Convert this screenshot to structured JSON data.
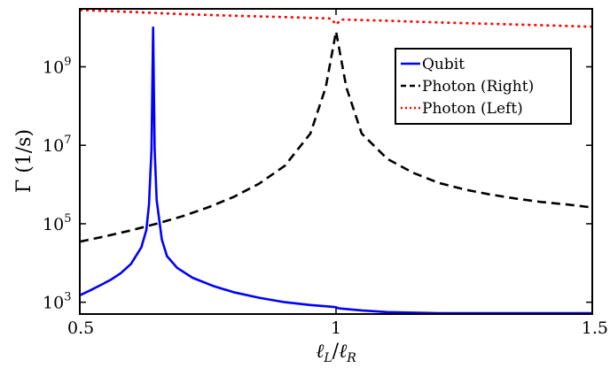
{
  "chart_data": {
    "type": "line",
    "xlabel": "ℓL/ℓR",
    "ylabel": "Γ (1/s)",
    "xlim": [
      0.5,
      1.5
    ],
    "ylim": [
      500,
      30000000000
    ],
    "y_scale": "log",
    "x_ticks": [
      {
        "value": 0.5,
        "label": "0.5"
      },
      {
        "value": 1,
        "label": "1"
      },
      {
        "value": 1.5,
        "label": "1.5"
      }
    ],
    "y_ticks": [
      {
        "value": 1000,
        "base": "10",
        "exp": "3"
      },
      {
        "value": 100000,
        "base": "10",
        "exp": "5"
      },
      {
        "value": 10000000,
        "base": "10",
        "exp": "7"
      },
      {
        "value": 1000000000,
        "base": "10",
        "exp": "9"
      }
    ],
    "grid": false,
    "legend_position": "top-right",
    "series": [
      {
        "name": "Qubit",
        "color": "#0000ff",
        "style": "solid",
        "points": [
          [
            0.5,
            1500
          ],
          [
            0.52,
            2000
          ],
          [
            0.54,
            2700
          ],
          [
            0.56,
            3700
          ],
          [
            0.58,
            5500
          ],
          [
            0.6,
            9500
          ],
          [
            0.62,
            25000
          ],
          [
            0.63,
            70000
          ],
          [
            0.635,
            300000
          ],
          [
            0.64,
            8000000
          ],
          [
            0.643,
            10000000000
          ],
          [
            0.646,
            8000000
          ],
          [
            0.65,
            400000
          ],
          [
            0.66,
            40000
          ],
          [
            0.67,
            15000
          ],
          [
            0.69,
            7500
          ],
          [
            0.72,
            4200
          ],
          [
            0.76,
            2600
          ],
          [
            0.8,
            1800
          ],
          [
            0.85,
            1300
          ],
          [
            0.9,
            1000
          ],
          [
            0.95,
            850
          ],
          [
            0.995,
            760
          ],
          [
            1.0,
            740
          ],
          [
            1.005,
            700
          ],
          [
            1.01,
            690
          ],
          [
            1.05,
            620
          ],
          [
            1.1,
            560
          ],
          [
            1.2,
            490
          ],
          [
            1.3,
            450
          ],
          [
            1.4,
            430
          ],
          [
            1.5,
            420
          ]
        ]
      },
      {
        "name": "Photon (Right)",
        "color": "#000000",
        "style": "dashed",
        "points": [
          [
            0.5,
            35000
          ],
          [
            0.55,
            48000
          ],
          [
            0.6,
            68000
          ],
          [
            0.65,
            100000
          ],
          [
            0.7,
            155000
          ],
          [
            0.75,
            260000
          ],
          [
            0.8,
            480000
          ],
          [
            0.85,
            1050000
          ],
          [
            0.9,
            3000000
          ],
          [
            0.95,
            20000000
          ],
          [
            0.98,
            300000000
          ],
          [
            1.0,
            8000000000
          ],
          [
            1.02,
            300000000
          ],
          [
            1.05,
            20000000
          ],
          [
            1.1,
            4500000
          ],
          [
            1.15,
            2000000
          ],
          [
            1.2,
            1100000
          ],
          [
            1.25,
            750000
          ],
          [
            1.3,
            560000
          ],
          [
            1.35,
            440000
          ],
          [
            1.4,
            360000
          ],
          [
            1.45,
            310000
          ],
          [
            1.5,
            260000
          ]
        ]
      },
      {
        "name": "Photon (Left)",
        "color": "#ff0000",
        "style": "dotted",
        "points": [
          [
            0.5,
            28000000000
          ],
          [
            0.6,
            25000000000
          ],
          [
            0.7,
            22000000000
          ],
          [
            0.8,
            20000000000
          ],
          [
            0.9,
            18500000000
          ],
          [
            0.99,
            17000000000
          ],
          [
            1.0,
            12000000000
          ],
          [
            1.01,
            16000000000
          ],
          [
            1.1,
            15000000000
          ],
          [
            1.2,
            13500000000
          ],
          [
            1.3,
            12500000000
          ],
          [
            1.4,
            11500000000
          ],
          [
            1.5,
            10500000000
          ]
        ]
      }
    ]
  }
}
